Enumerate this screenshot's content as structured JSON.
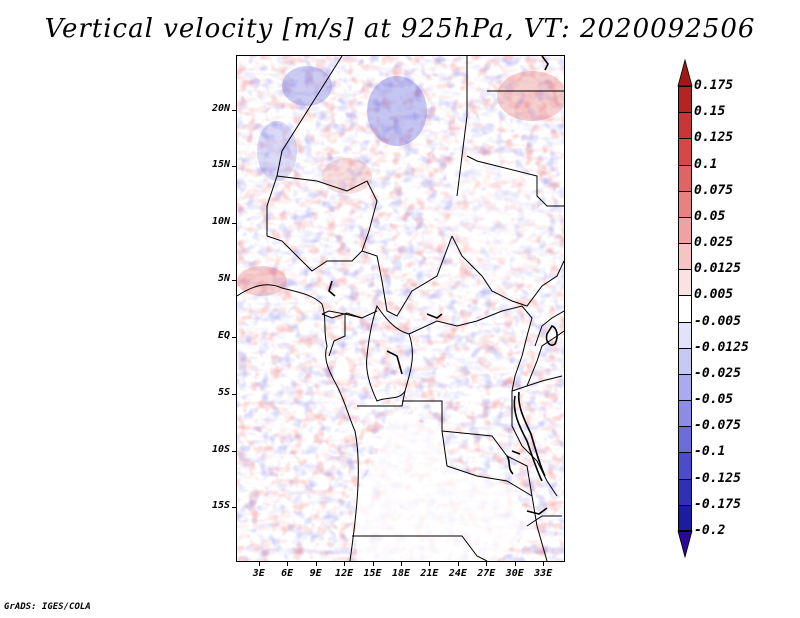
{
  "title": "Vertical velocity [m/s] at 925hPa, VT: 2020092506",
  "credit": "GrADS: IGES/COLA",
  "latitude_labels": [
    "20N",
    "15N",
    "10N",
    "5N",
    "EQ",
    "5S",
    "10S",
    "15S"
  ],
  "latitude_values": [
    20,
    15,
    10,
    5,
    0,
    -5,
    -10,
    -15
  ],
  "longitude_labels": [
    "3E",
    "6E",
    "9E",
    "12E",
    "15E",
    "18E",
    "21E",
    "24E",
    "27E",
    "30E",
    "33E"
  ],
  "longitude_values": [
    3,
    6,
    9,
    12,
    15,
    18,
    21,
    24,
    27,
    30,
    33
  ],
  "colorbar": {
    "labels": [
      "0.175",
      "0.15",
      "0.125",
      "0.1",
      "0.075",
      "0.05",
      "0.025",
      "0.0125",
      "0.005",
      "-0.005",
      "-0.0125",
      "-0.025",
      "-0.05",
      "-0.075",
      "-0.1",
      "-0.125",
      "-0.175",
      "-0.2"
    ],
    "colors": [
      "#9e1a1a",
      "#b52424",
      "#c83636",
      "#d64848",
      "#e06464",
      "#e88282",
      "#f0a2a2",
      "#f6c4c4",
      "#fbe2e2",
      "#ffffff",
      "#e2e2fb",
      "#c8c8f6",
      "#aaaaf0",
      "#8c8ce6",
      "#6c6cda",
      "#4c4ccb",
      "#3030b6",
      "#1c1ca0",
      "#2a0a90"
    ]
  }
}
